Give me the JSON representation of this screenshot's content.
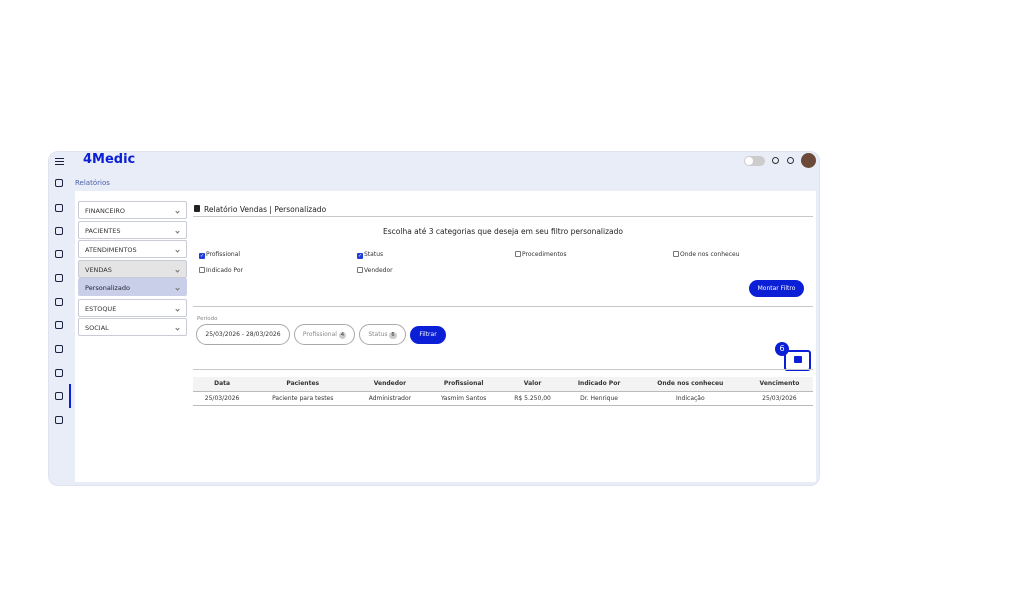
{
  "app": {
    "brand": "4Medic",
    "breadcrumb": "Relatórios"
  },
  "menu": [
    {
      "label": "FINANCEIRO",
      "open": false
    },
    {
      "label": "PACIENTES",
      "open": false
    },
    {
      "label": "ATENDIMENTOS",
      "open": false
    },
    {
      "label": "VENDAS",
      "open": true,
      "sub": [
        "Personalizado"
      ]
    },
    {
      "label": "ESTOQUE",
      "open": false
    },
    {
      "label": "SOCIAL",
      "open": false
    }
  ],
  "report": {
    "title": "Relatório Vendas | Personalizado",
    "instruction": "Escolha até 3 categorias que deseja em seu filtro personalizado",
    "options": [
      {
        "label": "Profissional",
        "checked": true
      },
      {
        "label": "Status",
        "checked": true
      },
      {
        "label": "Procedimentos",
        "checked": false
      },
      {
        "label": "Onde nos conheceu",
        "checked": false
      },
      {
        "label": "Indicado Por",
        "checked": false
      },
      {
        "label": "Vendedor",
        "checked": false
      }
    ],
    "build_button": "Montar Filtro",
    "period_label": "Período",
    "period": "25/03/2026 - 28/03/2026",
    "chips": [
      {
        "label": "Profissional",
        "count": "4"
      },
      {
        "label": "Status",
        "count": "6"
      }
    ],
    "filter_button": "Filtrar",
    "step_badge": "6"
  },
  "table": {
    "headers": [
      "Data",
      "Pacientes",
      "Vendedor",
      "Profissional",
      "Valor",
      "Indicado Por",
      "Onde nos conheceu",
      "Vencimento"
    ],
    "rows": [
      [
        "25/03/2026",
        "Paciente para testes",
        "Administrador",
        "Yasmim Santos",
        "R$ 5.250,00",
        "Dr. Henrique",
        "Indicação",
        "25/03/2026"
      ]
    ]
  }
}
